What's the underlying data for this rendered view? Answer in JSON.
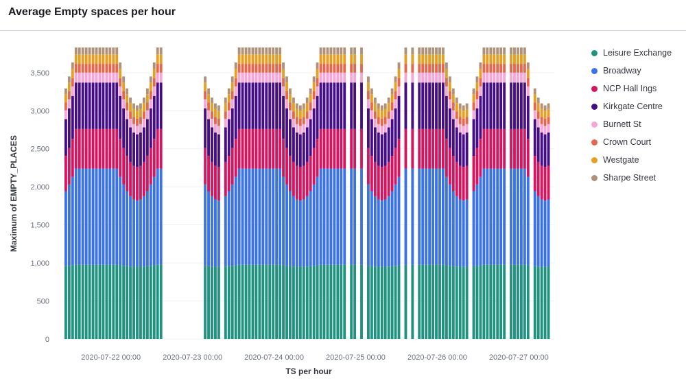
{
  "title": "Average Empty spaces per hour",
  "chart_data": {
    "type": "bar",
    "stacked": true,
    "xlabel": "TS per hour",
    "ylabel": "Maximum of EMPTY_PLACES",
    "ylim": [
      0,
      3850
    ],
    "yticks": [
      0,
      500,
      1000,
      1500,
      2000,
      2500,
      3000,
      3500
    ],
    "ytick_labels": [
      "0",
      "500",
      "1,000",
      "1,500",
      "2,000",
      "2,500",
      "3,000",
      "3,500"
    ],
    "xtick_labels": [
      "2020-07-22 00:00",
      "2020-07-23 00:00",
      "2020-07-24 00:00",
      "2020-07-25 00:00",
      "2020-07-26 00:00",
      "2020-07-27 00:00"
    ],
    "x_start": "2020-07-21 18:00",
    "interval": "1h",
    "missing_hours": [
      29,
      30,
      31,
      32,
      33,
      34,
      35,
      36,
      37,
      38,
      39,
      40,
      46,
      83,
      86,
      88,
      99,
      101,
      103,
      119,
      130,
      137
    ],
    "legend_position": "right",
    "series": [
      {
        "name": "Leisure Exchange",
        "color": "#209280",
        "day": 975,
        "night": 950
      },
      {
        "name": "Broadway",
        "color": "#3a72e8",
        "day": 1265,
        "night": 870
      },
      {
        "name": "NCP Hall Ings",
        "color": "#d6145f",
        "day": 520,
        "night": 440
      },
      {
        "name": "Kirkgate Centre",
        "color": "#460e86",
        "day": 610,
        "night": 430
      },
      {
        "name": "Burnett St",
        "color": "#f8a6d8",
        "day": 130,
        "night": 110
      },
      {
        "name": "Crown Court",
        "color": "#e7664c",
        "day": 115,
        "night": 95
      },
      {
        "name": "Westgate",
        "color": "#e5a024",
        "day": 125,
        "night": 105
      },
      {
        "name": "Sharpe Street",
        "color": "#b0917a",
        "day": 90,
        "night": 70
      }
    ]
  }
}
